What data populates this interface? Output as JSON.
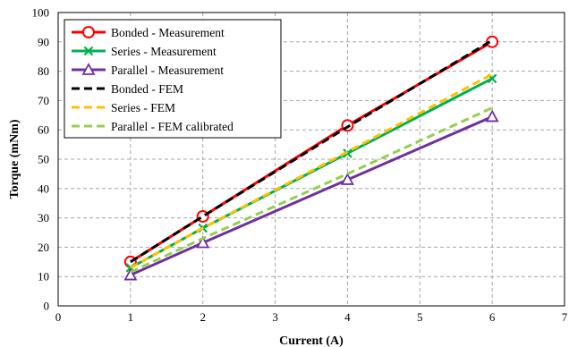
{
  "chart_data": {
    "type": "line",
    "xlabel": "Current (A)",
    "ylabel": "Torque (mNm)",
    "xlim": [
      0,
      7
    ],
    "ylim": [
      0,
      100
    ],
    "xticks": [
      "0",
      "1",
      "2",
      "3",
      "4",
      "5",
      "6",
      "7"
    ],
    "yticks": [
      "0",
      "10",
      "20",
      "30",
      "40",
      "50",
      "60",
      "70",
      "80",
      "90",
      "100"
    ],
    "grid": true,
    "legend_position": "top-left",
    "series": [
      {
        "name": "Bonded - Measurement",
        "x": [
          1,
          2,
          4,
          6
        ],
        "y": [
          15,
          30.5,
          61.5,
          90
        ],
        "color": "#ff0000",
        "style": "solid",
        "marker": "circle"
      },
      {
        "name": "Series - Measurement",
        "x": [
          1,
          2,
          4,
          6
        ],
        "y": [
          13,
          26.5,
          52,
          77.5
        ],
        "color": "#00b050",
        "style": "solid",
        "marker": "x"
      },
      {
        "name": "Parallel - Measurement",
        "x": [
          1,
          2,
          4,
          6
        ],
        "y": [
          10.5,
          21.5,
          43,
          64.5
        ],
        "color": "#7030a0",
        "style": "solid",
        "marker": "triangle"
      },
      {
        "name": "Bonded - FEM",
        "x": [
          1,
          2,
          4,
          6
        ],
        "y": [
          15,
          30.5,
          61,
          90.5
        ],
        "color": "#000000",
        "style": "dashed",
        "marker": "none"
      },
      {
        "name": "Series - FEM",
        "x": [
          1,
          2,
          4,
          6
        ],
        "y": [
          13,
          26.5,
          52.5,
          79
        ],
        "color": "#ffc000",
        "style": "dashed",
        "marker": "none"
      },
      {
        "name": "Parallel - FEM calibrated",
        "x": [
          1,
          2,
          4,
          6
        ],
        "y": [
          11.5,
          23,
          45,
          67.5
        ],
        "color": "#92d050",
        "style": "dashed",
        "marker": "none"
      }
    ]
  }
}
